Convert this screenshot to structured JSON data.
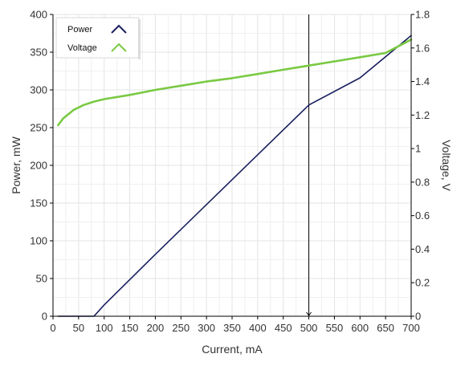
{
  "chart_data": {
    "type": "line",
    "xlabel": "Current, mA",
    "ylabel_left": "Power, mW",
    "ylabel_right": "Voltage, V",
    "xlim": [
      0,
      700
    ],
    "ylim_left": [
      0,
      400
    ],
    "ylim_right": [
      0,
      1.8
    ],
    "x_ticks": [
      "0",
      "50",
      "100",
      "150",
      "200",
      "250",
      "300",
      "350",
      "400",
      "450",
      "500",
      "550",
      "600",
      "650",
      "700"
    ],
    "y_left_ticks": [
      "0",
      "50",
      "100",
      "150",
      "200",
      "250",
      "300",
      "350",
      "400"
    ],
    "y_right_ticks": [
      "0",
      "0.2",
      "0.4",
      "0.6",
      "0.8",
      "1",
      "1.2",
      "1.4",
      "1.6",
      "1.8"
    ],
    "grid": true,
    "cursor_x": 500,
    "legend_position": "top-left",
    "series": [
      {
        "name": "Power",
        "axis": "left",
        "color": "#1a1f5e",
        "x": [
          10,
          50,
          80,
          100,
          200,
          300,
          400,
          500,
          600,
          700
        ],
        "y": [
          0,
          0,
          0,
          15,
          82,
          148,
          214,
          280,
          316,
          372
        ]
      },
      {
        "name": "Voltage",
        "axis": "right",
        "color": "#7ac943",
        "x": [
          10,
          20,
          40,
          60,
          80,
          100,
          150,
          200,
          250,
          300,
          350,
          400,
          450,
          500,
          550,
          600,
          650,
          700
        ],
        "y": [
          1.14,
          1.18,
          1.23,
          1.26,
          1.28,
          1.295,
          1.32,
          1.35,
          1.375,
          1.4,
          1.42,
          1.445,
          1.47,
          1.495,
          1.52,
          1.545,
          1.57,
          1.65
        ]
      }
    ]
  }
}
